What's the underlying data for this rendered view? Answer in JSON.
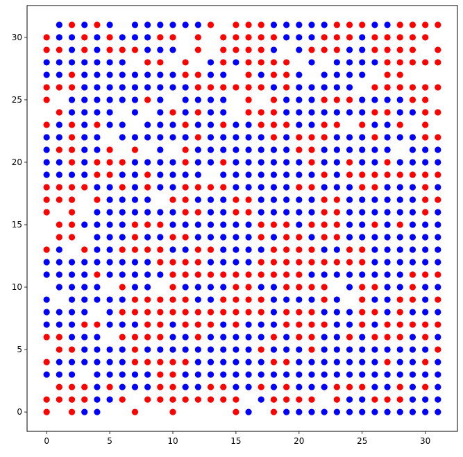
{
  "chart_data": {
    "type": "scatter",
    "title": "",
    "xlabel": "",
    "ylabel": "",
    "xlim": [
      -1.55,
      32.55
    ],
    "ylim": [
      -1.55,
      32.55
    ],
    "grid": false,
    "legend": "none",
    "x_ticks": [
      0,
      5,
      10,
      15,
      20,
      25,
      30
    ],
    "y_ticks": [
      0,
      5,
      10,
      15,
      20,
      25,
      30
    ],
    "colors": {
      "0": "#ff0000",
      "1": "#0000ff"
    },
    "marker_layout": "integer grid: row y, column x = index in row string",
    "rows": [
      {
        "y": 31,
        "cells": "-10101-1111110-00011111000110000-"
      },
      {
        "y": 30,
        "cells": "01101011100-0-00000111000100000-"
      },
      {
        "y": 29,
        "cells": "00101000111-0-00001-1000110000-0"
      },
      {
        "y": 28,
        "cells": "1111111-00-0-1010000-1-111100000"
      },
      {
        "y": 27,
        "cells": "110111111110011-01001-1111-00---"
      },
      {
        "y": 26,
        "cells": "0001111111110000001011111-000000"
      },
      {
        "y": 25,
        "cells": "0-11111101-1111-0-0111000111100-"
      },
      {
        "y": 24,
        "cells": "-01111-1-101011-0001111111001100"
      },
      {
        "y": 23,
        "cells": "0101011-1110110110001100-0110-0-"
      },
      {
        "y": 22,
        "cells": "11011-11111101111101000111011100"
      },
      {
        "y": 21,
        "cells": "100110-0-1-01111111100111111-111"
      },
      {
        "y": 20,
        "cells": "11010001111011011111101101101111"
      },
      {
        "y": 19,
        "cells": "1111001101111-111111110100000000"
      },
      {
        "y": 18,
        "cells": "00001101011000011111001110011101"
      },
      {
        "y": 17,
        "cells": "000-01111-001110011111001111110000"
      },
      {
        "y": 16,
        "cells": "0-0-11111110011001111100111111010"
      },
      {
        "y": 15,
        "cells": "-0011110001111111000100011010111"
      },
      {
        "y": 14,
        "cells": "-00-11101100111110100100111111110"
      },
      {
        "y": 13,
        "cells": "01-0110000110011110000110011111101"
      },
      {
        "y": 12,
        "cells": "11111111100001111000000000111111"
      },
      {
        "y": 11,
        "cells": "1111011111000000000001111111100001"
      },
      {
        "y": 10,
        "cells": "-1111-011-0111100110000-100110110"
      },
      {
        "y": 9,
        "cells": "1-1111100000110000111101-0110010"
      },
      {
        "y": 8,
        "cells": "1111-1000000000000100011100101110"
      },
      {
        "y": 7,
        "cells": "11100111001000101110000110100000"
      },
      {
        "y": 6,
        "cells": "00111-00001101111101001101000101"
      },
      {
        "y": 5,
        "cells": "-00111101111111110111011111111100"
      },
      {
        "y": 4,
        "cells": "01111110000011111100111111101101"
      },
      {
        "y": 3,
        "cells": "111-11111001111111111111111111111"
      },
      {
        "y": 2,
        "cells": "-00010111001100110101110001101011"
      },
      {
        "y": 1,
        "cells": "0000110-00000000-10000-01100011111"
      },
      {
        "y": 0,
        "cells": "0-011--0--0----01-0111111111111111"
      }
    ]
  }
}
